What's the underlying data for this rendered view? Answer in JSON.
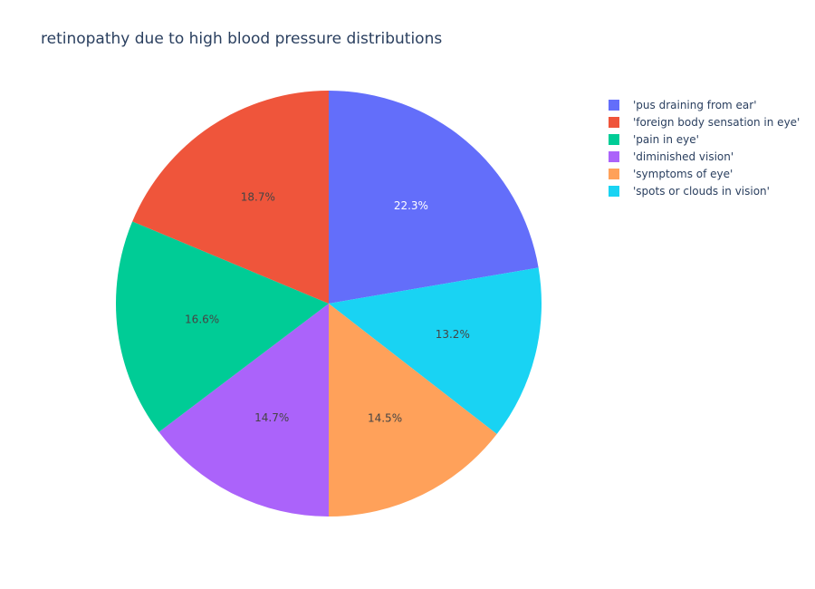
{
  "chart_data": {
    "type": "pie",
    "title": "retinopathy due to high blood pressure distributions",
    "categories": [
      "'pus draining from ear'",
      "'foreign body sensation in eye'",
      "'pain in eye'",
      "'diminished vision'",
      "'symptoms of eye'",
      "'spots or clouds in vision'"
    ],
    "values": [
      22.3,
      18.7,
      16.6,
      14.7,
      14.5,
      13.2
    ],
    "value_labels": [
      "22.3%",
      "18.7%",
      "16.6%",
      "14.7%",
      "14.5%",
      "13.2%"
    ],
    "colors": [
      "#636efa",
      "#ef553b",
      "#00cc96",
      "#ab63fa",
      "#ffa15a",
      "#19d3f3"
    ],
    "label_colors": [
      "#ffffff",
      "#444444",
      "#444444",
      "#444444",
      "#444444",
      "#444444"
    ],
    "direction": "counterclockwise",
    "legend_position": "top-right"
  }
}
